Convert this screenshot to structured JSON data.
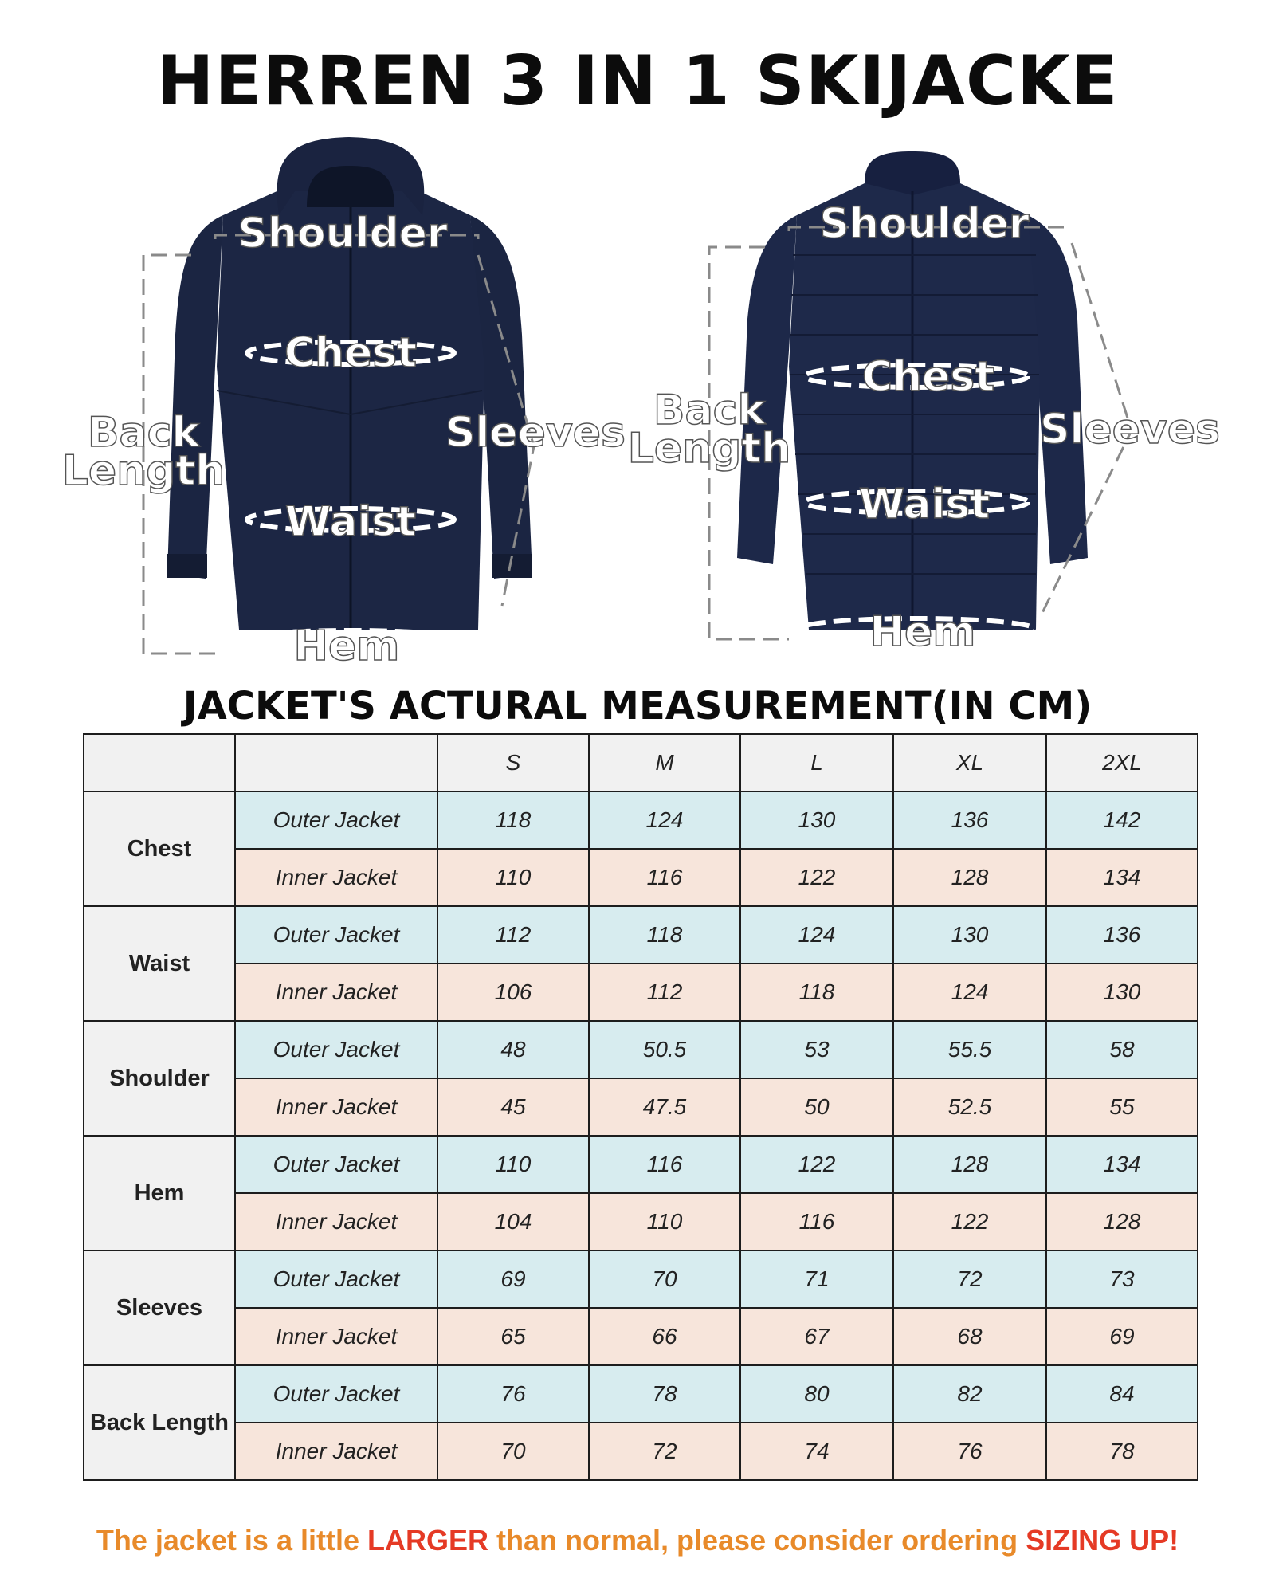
{
  "title": "HERREN 3 IN 1 SKIJACKE",
  "figures": {
    "left": {
      "shoulder": "Shoulder",
      "chest": "Chest",
      "back_line1": "Back",
      "back_line2": "Length",
      "sleeves": "Sleeves",
      "waist": "Waist",
      "hem": "Hem"
    },
    "right": {
      "shoulder": "Shoulder",
      "chest": "Chest",
      "back_line1": "Back",
      "back_line2": "Length",
      "sleeves": "Sleeves",
      "waist": "Waist",
      "hem": "Hem"
    }
  },
  "subtitle": "JACKET'S ACTURAL MEASUREMENT(IN CM)",
  "table": {
    "header": [
      "",
      "",
      "S",
      "M",
      "L",
      "XL",
      "2XL"
    ],
    "groups": [
      {
        "category": "Chest",
        "rows": [
          {
            "type": "Outer Jacket",
            "values": [
              "118",
              "124",
              "130",
              "136",
              "142"
            ]
          },
          {
            "type": "Inner Jacket",
            "values": [
              "110",
              "116",
              "122",
              "128",
              "134"
            ]
          }
        ]
      },
      {
        "category": "Waist",
        "rows": [
          {
            "type": "Outer Jacket",
            "values": [
              "112",
              "118",
              "124",
              "130",
              "136"
            ]
          },
          {
            "type": "Inner Jacket",
            "values": [
              "106",
              "112",
              "118",
              "124",
              "130"
            ]
          }
        ]
      },
      {
        "category": "Shoulder",
        "rows": [
          {
            "type": "Outer Jacket",
            "values": [
              "48",
              "50.5",
              "53",
              "55.5",
              "58"
            ]
          },
          {
            "type": "Inner Jacket",
            "values": [
              "45",
              "47.5",
              "50",
              "52.5",
              "55"
            ]
          }
        ]
      },
      {
        "category": "Hem",
        "rows": [
          {
            "type": "Outer Jacket",
            "values": [
              "110",
              "116",
              "122",
              "128",
              "134"
            ]
          },
          {
            "type": "Inner Jacket",
            "values": [
              "104",
              "110",
              "116",
              "122",
              "128"
            ]
          }
        ]
      },
      {
        "category": "Sleeves",
        "rows": [
          {
            "type": "Outer Jacket",
            "values": [
              "69",
              "70",
              "71",
              "72",
              "73"
            ]
          },
          {
            "type": "Inner Jacket",
            "values": [
              "65",
              "66",
              "67",
              "68",
              "69"
            ]
          }
        ]
      },
      {
        "category": "Back Length",
        "rows": [
          {
            "type": "Outer Jacket",
            "values": [
              "76",
              "78",
              "80",
              "82",
              "84"
            ]
          },
          {
            "type": "Inner Jacket",
            "values": [
              "70",
              "72",
              "74",
              "76",
              "78"
            ]
          }
        ]
      }
    ]
  },
  "note": {
    "part1": "The jacket is a little ",
    "highlight1": "LARGER",
    "part2": " than normal, please consider ordering ",
    "highlight2": "SIZING UP!"
  },
  "colors": {
    "jacket": "#1b2542",
    "outer_row": "#d7ecef",
    "inner_row": "#f7e5db",
    "header": "#f1f1f1",
    "note": "#e88a2a",
    "note_highlight": "#e53a25"
  }
}
